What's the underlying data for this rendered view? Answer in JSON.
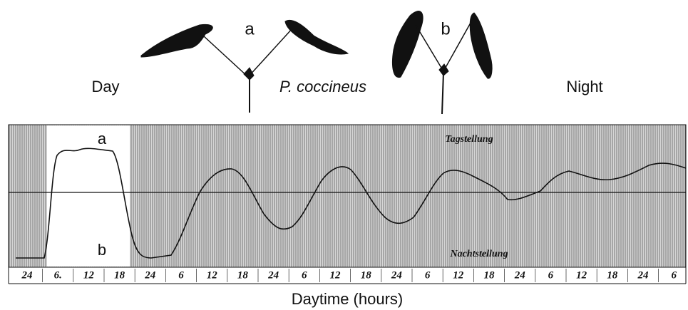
{
  "header": {
    "plant_a": "a",
    "day": "Day",
    "species": "P. coccineus",
    "plant_b": "b",
    "night": "Night"
  },
  "plot": {
    "curve_a": "a",
    "curve_b": "b",
    "day_position": "Tagstellung",
    "night_position": "Nachtstellung",
    "ticks": [
      "24",
      "6.",
      "12",
      "18",
      "24",
      "6",
      "12",
      "18",
      "24",
      "6",
      "12",
      "18",
      "24",
      "6",
      "12",
      "18",
      "24",
      "6",
      "12",
      "18",
      "24",
      "6"
    ],
    "xlabel": "Daytime (hours)"
  }
}
